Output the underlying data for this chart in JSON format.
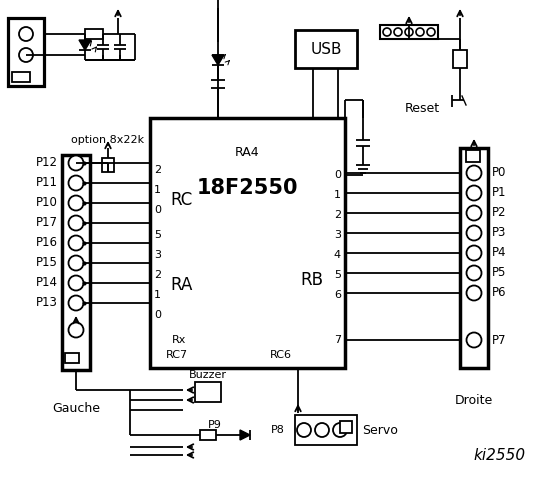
{
  "bg_color": "#ffffff",
  "chip_label": "18F2550",
  "chip_sublabel": "RA4",
  "rc_label": "RC",
  "ra_label": "RA",
  "rb_label": "RB",
  "rx_label": "Rx",
  "rc7_label": "RC7",
  "rc6_label": "RC6",
  "left_pins_rc": [
    "2",
    "1",
    "0"
  ],
  "left_pins_ra": [
    "5",
    "3",
    "2",
    "1",
    "0"
  ],
  "right_pins_rb": [
    "0",
    "1",
    "2",
    "3",
    "4",
    "5",
    "6",
    "7"
  ],
  "left_labels": [
    "P12",
    "P11",
    "P10",
    "P17",
    "P16",
    "P15",
    "P14",
    "P13"
  ],
  "right_labels": [
    "P0",
    "P1",
    "P2",
    "P3",
    "P4",
    "P5",
    "P6",
    "P7"
  ],
  "gauche_label": "Gauche",
  "droite_label": "Droite",
  "option_label": "option 8x22k",
  "reset_label": "Reset",
  "usb_label": "USB",
  "buzzer_label": "Buzzer",
  "servo_label": "Servo",
  "p8_label": "P8",
  "p9_label": "P9",
  "ki_label": "ki2550"
}
